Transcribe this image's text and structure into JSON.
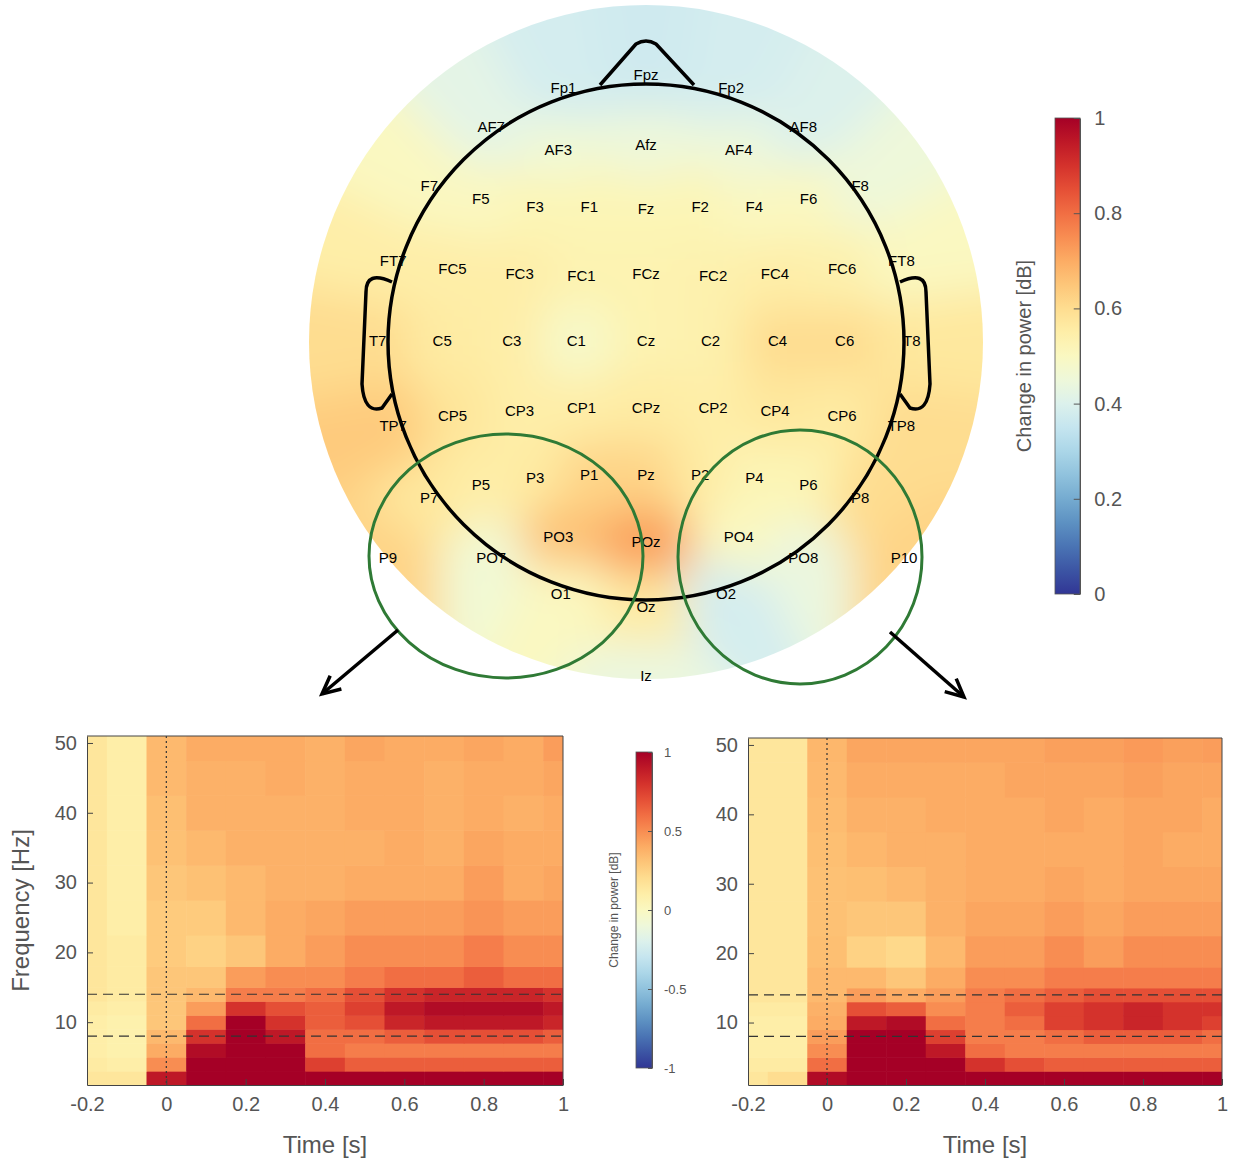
{
  "chart_data": [
    {
      "type": "topomap",
      "electrodes": [
        {
          "label": "Fp1",
          "x": -0.32,
          "y": 0.98,
          "value": 0.38
        },
        {
          "label": "Fpz",
          "x": 0,
          "y": 1.03,
          "value": 0.37
        },
        {
          "label": "Fp2",
          "x": 0.33,
          "y": 0.98,
          "value": 0.38
        },
        {
          "label": "AF7",
          "x": -0.6,
          "y": 0.83,
          "value": 0.42
        },
        {
          "label": "AF3",
          "x": -0.34,
          "y": 0.74,
          "value": 0.46
        },
        {
          "label": "Afz",
          "x": 0,
          "y": 0.76,
          "value": 0.45
        },
        {
          "label": "AF4",
          "x": 0.36,
          "y": 0.74,
          "value": 0.45
        },
        {
          "label": "AF8",
          "x": 0.61,
          "y": 0.83,
          "value": 0.4
        },
        {
          "label": "F7",
          "x": -0.84,
          "y": 0.6,
          "value": 0.5
        },
        {
          "label": "F5",
          "x": -0.64,
          "y": 0.55,
          "value": 0.5
        },
        {
          "label": "F3",
          "x": -0.43,
          "y": 0.52,
          "value": 0.52
        },
        {
          "label": "F1",
          "x": -0.22,
          "y": 0.52,
          "value": 0.52
        },
        {
          "label": "Fz",
          "x": 0,
          "y": 0.51,
          "value": 0.52
        },
        {
          "label": "F2",
          "x": 0.21,
          "y": 0.52,
          "value": 0.52
        },
        {
          "label": "F4",
          "x": 0.42,
          "y": 0.52,
          "value": 0.5
        },
        {
          "label": "F6",
          "x": 0.63,
          "y": 0.55,
          "value": 0.5
        },
        {
          "label": "F8",
          "x": 0.83,
          "y": 0.6,
          "value": 0.45
        },
        {
          "label": "FT7",
          "x": -0.98,
          "y": 0.31,
          "value": 0.55
        },
        {
          "label": "FC5",
          "x": -0.75,
          "y": 0.28,
          "value": 0.55
        },
        {
          "label": "FC3",
          "x": -0.49,
          "y": 0.26,
          "value": 0.55
        },
        {
          "label": "FC1",
          "x": -0.25,
          "y": 0.25,
          "value": 0.53
        },
        {
          "label": "FCz",
          "x": 0,
          "y": 0.26,
          "value": 0.53
        },
        {
          "label": "FC2",
          "x": 0.26,
          "y": 0.25,
          "value": 0.54
        },
        {
          "label": "FC4",
          "x": 0.5,
          "y": 0.26,
          "value": 0.55
        },
        {
          "label": "FC6",
          "x": 0.76,
          "y": 0.28,
          "value": 0.54
        },
        {
          "label": "FT8",
          "x": 0.99,
          "y": 0.31,
          "value": 0.5
        },
        {
          "label": "T7",
          "x": -1.04,
          "y": 0,
          "value": 0.6
        },
        {
          "label": "C5",
          "x": -0.79,
          "y": 0,
          "value": 0.56
        },
        {
          "label": "C3",
          "x": -0.52,
          "y": 0,
          "value": 0.55
        },
        {
          "label": "C1",
          "x": -0.27,
          "y": 0,
          "value": 0.48
        },
        {
          "label": "Cz",
          "x": 0,
          "y": 0,
          "value": 0.53
        },
        {
          "label": "C2",
          "x": 0.25,
          "y": 0,
          "value": 0.54
        },
        {
          "label": "C4",
          "x": 0.51,
          "y": 0,
          "value": 0.6
        },
        {
          "label": "C6",
          "x": 0.77,
          "y": 0,
          "value": 0.6
        },
        {
          "label": "T8",
          "x": 1.03,
          "y": 0,
          "value": 0.57
        },
        {
          "label": "TP7",
          "x": -0.98,
          "y": -0.33,
          "value": 0.64
        },
        {
          "label": "CP5",
          "x": -0.75,
          "y": -0.29,
          "value": 0.58
        },
        {
          "label": "CP3",
          "x": -0.49,
          "y": -0.27,
          "value": 0.55
        },
        {
          "label": "CP1",
          "x": -0.25,
          "y": -0.26,
          "value": 0.55
        },
        {
          "label": "CPz",
          "x": 0,
          "y": -0.26,
          "value": 0.56
        },
        {
          "label": "CP2",
          "x": 0.26,
          "y": -0.26,
          "value": 0.55
        },
        {
          "label": "CP4",
          "x": 0.5,
          "y": -0.27,
          "value": 0.57
        },
        {
          "label": "CP6",
          "x": 0.76,
          "y": -0.29,
          "value": 0.56
        },
        {
          "label": "TP8",
          "x": 0.99,
          "y": -0.33,
          "value": 0.6
        },
        {
          "label": "P7",
          "x": -0.84,
          "y": -0.61,
          "value": 0.57
        },
        {
          "label": "P5",
          "x": -0.64,
          "y": -0.56,
          "value": 0.55
        },
        {
          "label": "P3",
          "x": -0.43,
          "y": -0.53,
          "value": 0.56
        },
        {
          "label": "P1",
          "x": -0.22,
          "y": -0.52,
          "value": 0.62
        },
        {
          "label": "Pz",
          "x": 0,
          "y": -0.52,
          "value": 0.62
        },
        {
          "label": "P2",
          "x": 0.21,
          "y": -0.52,
          "value": 0.56
        },
        {
          "label": "P4",
          "x": 0.42,
          "y": -0.53,
          "value": 0.52
        },
        {
          "label": "P6",
          "x": 0.63,
          "y": -0.56,
          "value": 0.52
        },
        {
          "label": "P8",
          "x": 0.83,
          "y": -0.61,
          "value": 0.6
        },
        {
          "label": "P9",
          "x": -1.0,
          "y": -0.84,
          "value": 0.62
        },
        {
          "label": "PO7",
          "x": -0.6,
          "y": -0.84,
          "value": 0.46
        },
        {
          "label": "PO3",
          "x": -0.34,
          "y": -0.76,
          "value": 0.66
        },
        {
          "label": "POz",
          "x": 0,
          "y": -0.78,
          "value": 0.72
        },
        {
          "label": "PO4",
          "x": 0.36,
          "y": -0.76,
          "value": 0.5
        },
        {
          "label": "PO8",
          "x": 0.61,
          "y": -0.84,
          "value": 0.44
        },
        {
          "label": "P10",
          "x": 1.0,
          "y": -0.84,
          "value": 0.62
        },
        {
          "label": "O1",
          "x": -0.33,
          "y": -0.98,
          "value": 0.5
        },
        {
          "label": "Oz",
          "x": 0,
          "y": -1.03,
          "value": 0.56
        },
        {
          "label": "O2",
          "x": 0.31,
          "y": -0.98,
          "value": 0.38
        },
        {
          "label": "Iz",
          "x": 0,
          "y": -1.3,
          "value": 0.44
        }
      ],
      "colorbar": {
        "label": "Change in power [dB]",
        "range": [
          0,
          1
        ],
        "ticks": [
          0,
          0.2,
          0.4,
          0.6,
          0.8,
          1
        ]
      }
    },
    {
      "type": "heatmap",
      "x_label": "Time [s]",
      "y_label": "Frequency [Hz]",
      "x": [
        -0.2,
        -0.1,
        0,
        0.1,
        0.2,
        0.3,
        0.4,
        0.5,
        0.6,
        0.7,
        0.8,
        0.9,
        1
      ],
      "y": [
        2,
        4,
        6,
        8,
        10,
        12,
        14,
        16,
        20,
        25,
        30,
        35,
        40,
        45,
        50
      ],
      "xlim": [
        -0.2,
        1
      ],
      "ylim": [
        1,
        51
      ],
      "xticks": [
        -0.2,
        0,
        0.2,
        0.4,
        0.6,
        0.8,
        1
      ],
      "yticks": [
        10,
        20,
        30,
        40,
        50
      ],
      "vlines": [
        0
      ],
      "hlines": [
        8,
        14
      ],
      "cells": [
        [
          0.15,
          0.15,
          0.9,
          1,
          1,
          1,
          1,
          1,
          1,
          1,
          1,
          1,
          1
        ],
        [
          0.12,
          0.1,
          0.5,
          1,
          1,
          1,
          0.75,
          0.65,
          0.65,
          0.65,
          0.65,
          0.65,
          0.65
        ],
        [
          0.1,
          0.08,
          0.4,
          0.95,
          1,
          1,
          0.6,
          0.55,
          0.55,
          0.55,
          0.55,
          0.55,
          0.55
        ],
        [
          0.1,
          0.08,
          0.35,
          0.8,
          1,
          0.9,
          0.6,
          0.6,
          0.65,
          0.7,
          0.7,
          0.7,
          0.65
        ],
        [
          0.1,
          0.08,
          0.3,
          0.6,
          1,
          0.8,
          0.65,
          0.7,
          0.85,
          0.9,
          0.9,
          0.9,
          0.85
        ],
        [
          0.12,
          0.1,
          0.3,
          0.45,
          0.8,
          0.7,
          0.65,
          0.75,
          0.9,
          0.95,
          0.95,
          0.95,
          0.9
        ],
        [
          0.15,
          0.12,
          0.3,
          0.35,
          0.55,
          0.55,
          0.6,
          0.7,
          0.8,
          0.85,
          0.85,
          0.85,
          0.8
        ],
        [
          0.15,
          0.12,
          0.3,
          0.3,
          0.45,
          0.5,
          0.5,
          0.55,
          0.6,
          0.6,
          0.65,
          0.6,
          0.6
        ],
        [
          0.15,
          0.12,
          0.28,
          0.25,
          0.3,
          0.4,
          0.45,
          0.5,
          0.5,
          0.5,
          0.55,
          0.5,
          0.5
        ],
        [
          0.15,
          0.1,
          0.28,
          0.28,
          0.35,
          0.4,
          0.42,
          0.45,
          0.45,
          0.45,
          0.48,
          0.45,
          0.45
        ],
        [
          0.15,
          0.1,
          0.3,
          0.32,
          0.35,
          0.38,
          0.38,
          0.4,
          0.4,
          0.4,
          0.45,
          0.4,
          0.42
        ],
        [
          0.15,
          0.1,
          0.32,
          0.35,
          0.38,
          0.38,
          0.38,
          0.38,
          0.4,
          0.38,
          0.42,
          0.4,
          0.4
        ],
        [
          0.15,
          0.1,
          0.33,
          0.38,
          0.38,
          0.38,
          0.38,
          0.4,
          0.4,
          0.38,
          0.4,
          0.38,
          0.4
        ],
        [
          0.15,
          0.1,
          0.35,
          0.38,
          0.38,
          0.4,
          0.38,
          0.4,
          0.4,
          0.38,
          0.4,
          0.4,
          0.42
        ],
        [
          0.15,
          0.1,
          0.35,
          0.4,
          0.4,
          0.4,
          0.38,
          0.42,
          0.4,
          0.4,
          0.42,
          0.4,
          0.45
        ]
      ],
      "colorbar": {
        "label": "Change in power [dB]",
        "range": [
          -1,
          1
        ],
        "ticks": [
          -1,
          -0.5,
          0,
          0.5,
          1
        ]
      }
    },
    {
      "type": "heatmap",
      "x_label": "Time [s]",
      "x": [
        -0.2,
        -0.1,
        0,
        0.1,
        0.2,
        0.3,
        0.4,
        0.5,
        0.6,
        0.7,
        0.8,
        0.9,
        1
      ],
      "y": [
        2,
        4,
        6,
        8,
        10,
        12,
        14,
        16,
        20,
        25,
        30,
        35,
        40,
        45,
        50
      ],
      "xlim": [
        -0.2,
        1
      ],
      "ylim": [
        1,
        51
      ],
      "xticks": [
        -0.2,
        0,
        0.2,
        0.4,
        0.6,
        0.8,
        1
      ],
      "yticks": [
        10,
        20,
        30,
        40,
        50
      ],
      "vlines": [
        0
      ],
      "hlines": [
        8,
        14
      ],
      "clim": [
        -1,
        1
      ],
      "cells": [
        [
          0.15,
          0.2,
          0.95,
          1,
          1,
          1,
          1,
          1,
          1,
          1,
          1,
          1,
          1
        ],
        [
          0.12,
          0.12,
          0.6,
          1,
          1,
          1,
          0.8,
          0.7,
          0.65,
          0.65,
          0.65,
          0.65,
          0.65
        ],
        [
          0.1,
          0.1,
          0.5,
          1,
          1,
          0.9,
          0.6,
          0.55,
          0.55,
          0.55,
          0.55,
          0.55,
          0.55
        ],
        [
          0.1,
          0.1,
          0.45,
          1,
          1,
          0.75,
          0.55,
          0.55,
          0.6,
          0.65,
          0.65,
          0.65,
          0.6
        ],
        [
          0.1,
          0.1,
          0.4,
          0.9,
          0.95,
          0.6,
          0.55,
          0.6,
          0.75,
          0.8,
          0.85,
          0.8,
          0.75
        ],
        [
          0.12,
          0.12,
          0.38,
          0.7,
          0.65,
          0.5,
          0.55,
          0.65,
          0.75,
          0.8,
          0.85,
          0.8,
          0.8
        ],
        [
          0.15,
          0.15,
          0.35,
          0.45,
          0.4,
          0.45,
          0.55,
          0.6,
          0.65,
          0.7,
          0.7,
          0.7,
          0.7
        ],
        [
          0.15,
          0.15,
          0.35,
          0.35,
          0.3,
          0.4,
          0.5,
          0.5,
          0.55,
          0.55,
          0.55,
          0.55,
          0.55
        ],
        [
          0.15,
          0.15,
          0.33,
          0.25,
          0.22,
          0.35,
          0.45,
          0.45,
          0.5,
          0.45,
          0.5,
          0.5,
          0.5
        ],
        [
          0.15,
          0.15,
          0.32,
          0.3,
          0.3,
          0.38,
          0.42,
          0.42,
          0.45,
          0.42,
          0.45,
          0.45,
          0.45
        ],
        [
          0.15,
          0.15,
          0.32,
          0.33,
          0.35,
          0.38,
          0.4,
          0.4,
          0.42,
          0.4,
          0.42,
          0.42,
          0.42
        ],
        [
          0.15,
          0.15,
          0.33,
          0.36,
          0.38,
          0.38,
          0.4,
          0.4,
          0.4,
          0.4,
          0.42,
          0.4,
          0.4
        ],
        [
          0.15,
          0.15,
          0.34,
          0.38,
          0.38,
          0.4,
          0.4,
          0.4,
          0.42,
          0.4,
          0.42,
          0.42,
          0.4
        ],
        [
          0.15,
          0.15,
          0.35,
          0.4,
          0.4,
          0.4,
          0.4,
          0.42,
          0.42,
          0.42,
          0.44,
          0.42,
          0.42
        ],
        [
          0.15,
          0.15,
          0.36,
          0.42,
          0.42,
          0.42,
          0.42,
          0.42,
          0.44,
          0.44,
          0.46,
          0.44,
          0.45
        ]
      ]
    }
  ]
}
